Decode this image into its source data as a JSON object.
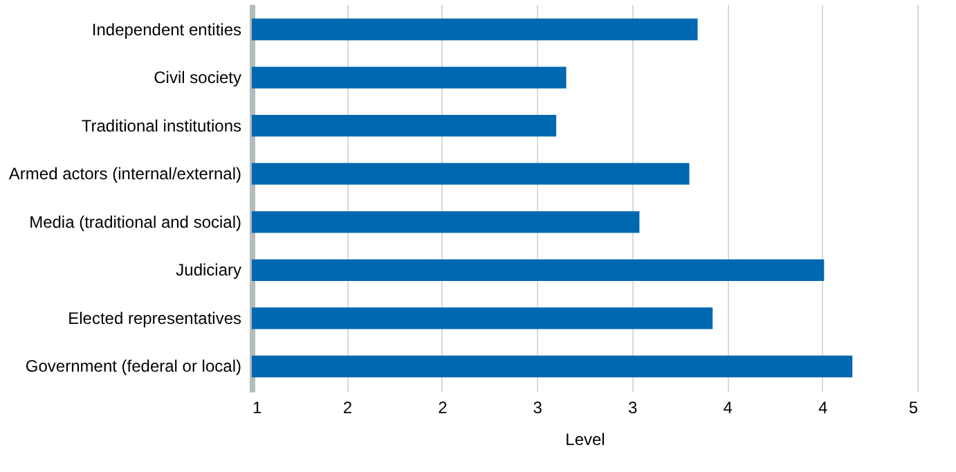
{
  "chart_data": {
    "type": "bar",
    "orientation": "horizontal",
    "xlabel": "Level",
    "categories": [
      "Independent entities",
      "Civil society",
      "Traditional institutions",
      "Armed actors (internal/external)",
      "Media (traditional and social)",
      "Judiciary",
      "Elected representatives",
      "Government (federal or local)"
    ],
    "values": [
      3.68,
      2.89,
      2.83,
      3.63,
      3.33,
      4.44,
      3.77,
      4.61
    ],
    "color": "#0068b1",
    "xlim": [
      1,
      5
    ],
    "xticks": [
      1,
      {
        "value": 1.571,
        "label": "2"
      },
      {
        "value": 2.143,
        "label": "2"
      },
      {
        "value": 2.714,
        "label": "3"
      },
      {
        "value": 3.286,
        "label": "3"
      },
      {
        "value": 3.857,
        "label": "4"
      },
      {
        "value": 4.429,
        "label": "4"
      },
      5
    ],
    "grid": "x"
  }
}
